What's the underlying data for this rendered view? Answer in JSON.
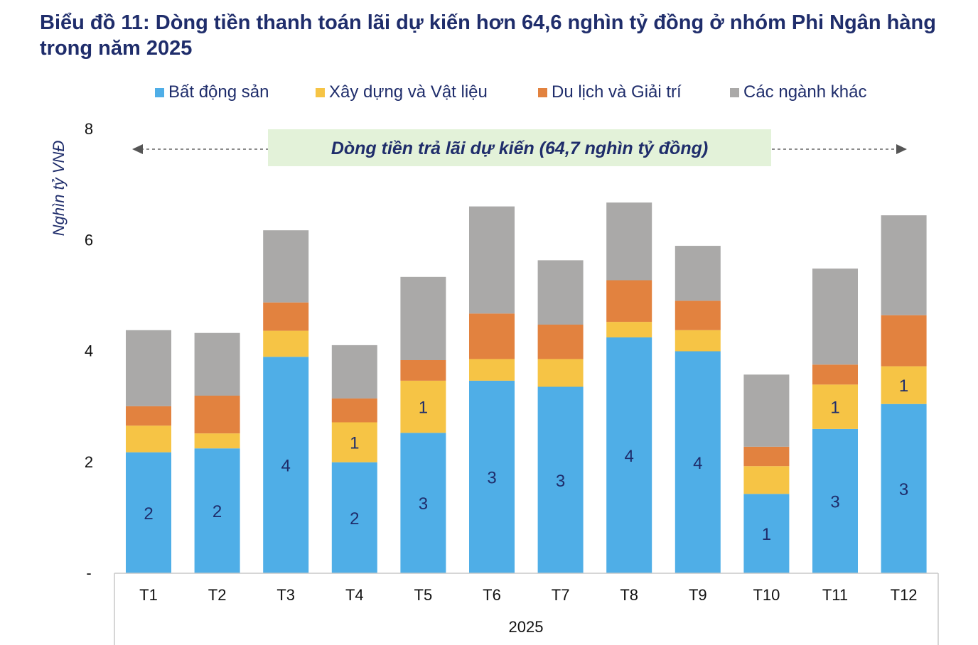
{
  "title": "Biểu đồ 11: Dòng tiền thanh toán lãi dự kiến hơn 64,6 nghìn tỷ đồng ở nhóm Phi Ngân hàng trong năm 2025",
  "colors": {
    "bds": "#4faee7",
    "xaydung": "#f6c445",
    "dulich": "#e2823f",
    "khac": "#aaa9a8",
    "text": "#1f2d6b",
    "banner_bg": "#e3f2d9"
  },
  "chart_data": {
    "type": "bar",
    "stacked": true,
    "title": "Biểu đồ 11: Dòng tiền thanh toán lãi dự kiến hơn 64,6 nghìn tỷ đồng ở nhóm Phi Ngân hàng trong năm 2025",
    "xlabel": "2025",
    "ylabel": "Nghìn tỷ VNĐ",
    "ylim": [
      0,
      8
    ],
    "yticks": [
      "-",
      "2",
      "4",
      "6",
      "8"
    ],
    "categories": [
      "T1",
      "T2",
      "T3",
      "T4",
      "T5",
      "T6",
      "T7",
      "T8",
      "T9",
      "T10",
      "T11",
      "T12"
    ],
    "series": [
      {
        "name": "Bất động sản",
        "color": "#4faee7",
        "values": [
          2.18,
          2.25,
          3.9,
          2.0,
          2.53,
          3.47,
          3.36,
          4.25,
          4.0,
          1.43,
          2.6,
          3.05
        ],
        "labels": [
          "2",
          "2",
          "4",
          "2",
          "3",
          "3",
          "3",
          "4",
          "4",
          "1",
          "3",
          "3"
        ]
      },
      {
        "name": "Xây dựng và Vật liệu",
        "color": "#f6c445",
        "values": [
          0.48,
          0.27,
          0.47,
          0.72,
          0.94,
          0.39,
          0.5,
          0.28,
          0.38,
          0.5,
          0.8,
          0.68
        ],
        "labels": [
          "",
          "",
          "",
          "1",
          "1",
          "",
          "",
          "",
          "",
          "",
          "1",
          "1"
        ]
      },
      {
        "name": "Du lịch và Giải trí",
        "color": "#e2823f",
        "values": [
          0.35,
          0.68,
          0.51,
          0.43,
          0.37,
          0.82,
          0.62,
          0.75,
          0.53,
          0.35,
          0.36,
          0.92
        ],
        "labels": [
          "",
          "",
          "",
          "",
          "",
          "",
          "",
          "",
          "",
          "",
          "",
          ""
        ]
      },
      {
        "name": "Các ngành khác",
        "color": "#aaa9a8",
        "values": [
          1.37,
          1.13,
          1.3,
          0.96,
          1.5,
          1.93,
          1.16,
          1.4,
          0.99,
          1.3,
          1.73,
          1.8
        ],
        "labels": [
          "",
          "",
          "",
          "",
          "",
          "",
          "",
          "",
          "",
          "",
          "",
          ""
        ]
      }
    ],
    "annotation": "Dòng tiền trả lãi dự kiến (64,7 nghìn tỷ đồng)",
    "legend_position": "top"
  }
}
